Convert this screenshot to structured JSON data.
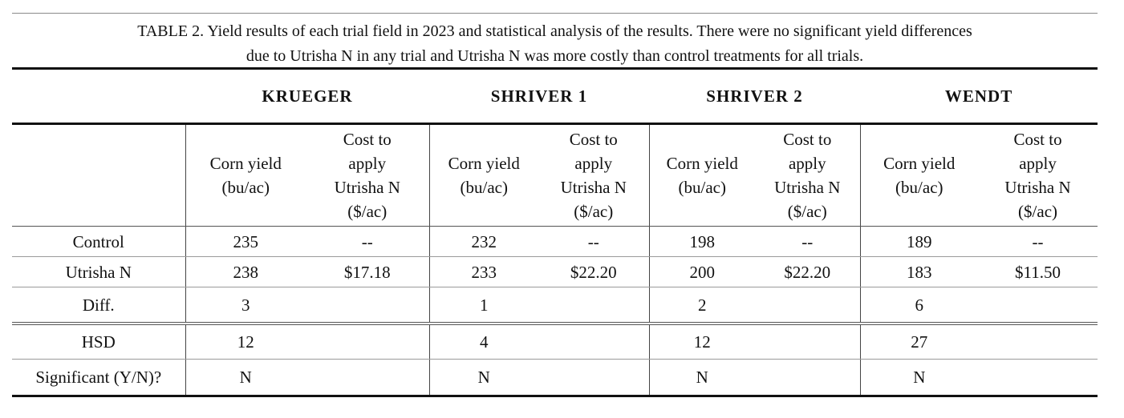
{
  "caption": {
    "line1": "TABLE 2. Yield results of each trial field in 2023 and statistical analysis of the results. There were no significant yield differences",
    "line2": "due to Utrisha N in any trial and Utrisha N was more costly than control treatments for all trials."
  },
  "table": {
    "sites": [
      "KRUEGER",
      "SHRIVER 1",
      "SHRIVER 2",
      "WENDT"
    ],
    "subheaders": {
      "yield": [
        "Corn yield",
        "(bu/ac)"
      ],
      "cost": [
        "Cost to",
        "apply",
        "Utrisha N",
        "($/ac)"
      ]
    },
    "rows": {
      "control": {
        "label": "Control",
        "values": [
          "235",
          "--",
          "232",
          "--",
          "198",
          "--",
          "189",
          "--"
        ]
      },
      "utrisha": {
        "label": "Utrisha N",
        "values": [
          "238",
          "$17.18",
          "233",
          "$22.20",
          "200",
          "$22.20",
          "183",
          "$11.50"
        ]
      },
      "diff": {
        "label": "Diff.",
        "values": [
          "3",
          "",
          "1",
          "",
          "2",
          "",
          "6",
          ""
        ]
      },
      "hsd": {
        "label": "HSD",
        "values": [
          "12",
          "",
          "4",
          "",
          "12",
          "",
          "27",
          ""
        ]
      },
      "significant": {
        "label": "Significant (Y/N)?",
        "values": [
          "N",
          "",
          "N",
          "",
          "N",
          "",
          "N",
          ""
        ]
      }
    }
  }
}
